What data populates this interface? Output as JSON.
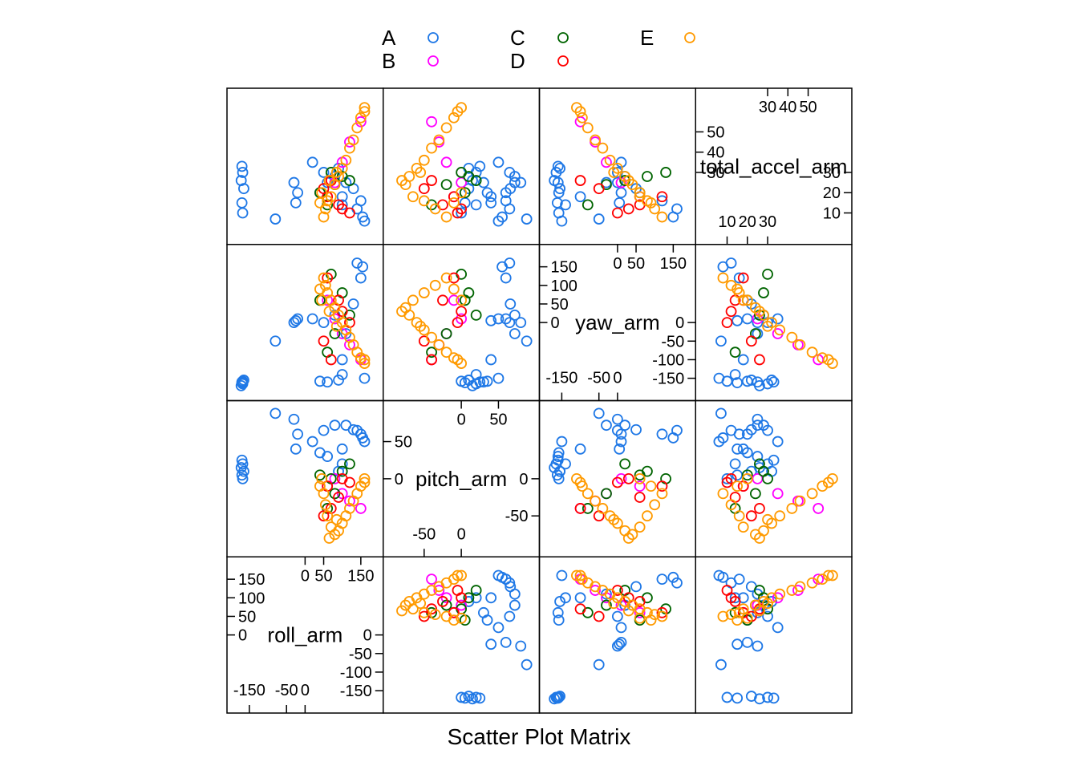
{
  "chart_data": {
    "type": "scatter",
    "subtype": "scatter-plot-matrix",
    "title": "",
    "xlabel": "Scatter Plot Matrix",
    "variables": [
      "roll_arm",
      "pitch_arm",
      "yaw_arm",
      "total_accel_arm"
    ],
    "variable_labels": [
      "roll_arm",
      "pitch_arm",
      "yaw_arm",
      "total_accel_arm"
    ],
    "ranges": {
      "roll_arm": [
        -180,
        180
      ],
      "pitch_arm": [
        -90,
        90
      ],
      "yaw_arm": [
        -180,
        180
      ],
      "total_accel_arm": [
        0,
        66
      ]
    },
    "legend": {
      "position": "top",
      "columns": 3,
      "entries": [
        {
          "name": "A",
          "color": "#1f78e6"
        },
        {
          "name": "B",
          "color": "#ff00ff"
        },
        {
          "name": "C",
          "color": "#006400"
        },
        {
          "name": "D",
          "color": "#ff0000"
        },
        {
          "name": "E",
          "color": "#ff9a00"
        }
      ]
    },
    "diag_ticks": {
      "roll_arm": {
        "left": [
          {
            "v": 150,
            "t": "150"
          },
          {
            "v": 100,
            "t": "100"
          },
          {
            "v": 50,
            "t": "50"
          },
          {
            "v": 0,
            "t": "0"
          }
        ],
        "top": [
          {
            "v": 0,
            "t": "0"
          },
          {
            "v": 50,
            "t": "50"
          },
          {
            "v": 150,
            "t": "150"
          }
        ],
        "bottom": [
          {
            "v": -150,
            "t": "-150"
          },
          {
            "v": -50,
            "t": "-50"
          },
          {
            "v": 0,
            "t": "0"
          }
        ],
        "right": [
          {
            "v": 0,
            "t": "0"
          },
          {
            "v": -50,
            "t": "-50"
          },
          {
            "v": -100,
            "t": "-100"
          },
          {
            "v": -150,
            "t": "-150"
          }
        ]
      },
      "pitch_arm": {
        "left": [
          {
            "v": 50,
            "t": "50"
          },
          {
            "v": 0,
            "t": "0"
          }
        ],
        "top": [
          {
            "v": 0,
            "t": "0"
          },
          {
            "v": 50,
            "t": "50"
          }
        ],
        "bottom": [
          {
            "v": -50,
            "t": "-50"
          },
          {
            "v": 0,
            "t": "0"
          }
        ],
        "right": [
          {
            "v": 0,
            "t": "0"
          },
          {
            "v": -50,
            "t": "-50"
          }
        ]
      },
      "yaw_arm": {
        "left": [
          {
            "v": 150,
            "t": "150"
          },
          {
            "v": 100,
            "t": "100"
          },
          {
            "v": 50,
            "t": "50"
          },
          {
            "v": 0,
            "t": "0"
          }
        ],
        "top": [
          {
            "v": 0,
            "t": "0"
          },
          {
            "v": 50,
            "t": "50"
          },
          {
            "v": 150,
            "t": "150"
          }
        ],
        "bottom": [
          {
            "v": -150,
            "t": "-150"
          },
          {
            "v": -50,
            "t": "-50"
          },
          {
            "v": 0,
            "t": "0"
          }
        ],
        "right": [
          {
            "v": 0,
            "t": "0"
          },
          {
            "v": -50,
            "t": "-50"
          },
          {
            "v": -100,
            "t": "-100"
          },
          {
            "v": -150,
            "t": "-150"
          }
        ]
      },
      "total_accel_arm": {
        "left": [
          {
            "v": 50,
            "t": "50"
          },
          {
            "v": 40,
            "t": "40"
          },
          {
            "v": 30,
            "t": "30"
          }
        ],
        "top": [
          {
            "v": 30,
            "t": "30"
          },
          {
            "v": 40,
            "t": "40"
          },
          {
            "v": 50,
            "t": "50"
          }
        ],
        "bottom": [
          {
            "v": 10,
            "t": "10"
          },
          {
            "v": 20,
            "t": "20"
          },
          {
            "v": 30,
            "t": "30"
          }
        ],
        "right": [
          {
            "v": 30,
            "t": "30"
          },
          {
            "v": 20,
            "t": "20"
          },
          {
            "v": 10,
            "t": "10"
          }
        ]
      }
    },
    "series": [
      {
        "name": "A",
        "points": [
          {
            "roll_arm": -170,
            "pitch_arm": 25,
            "yaw_arm": -160,
            "total_accel_arm": 33
          },
          {
            "roll_arm": -168,
            "pitch_arm": 20,
            "yaw_arm": -165,
            "total_accel_arm": 30
          },
          {
            "roll_arm": -172,
            "pitch_arm": 15,
            "yaw_arm": -170,
            "total_accel_arm": 26
          },
          {
            "roll_arm": -165,
            "pitch_arm": 10,
            "yaw_arm": -155,
            "total_accel_arm": 22
          },
          {
            "roll_arm": -170,
            "pitch_arm": 5,
            "yaw_arm": -162,
            "total_accel_arm": 15
          },
          {
            "roll_arm": -168,
            "pitch_arm": 0,
            "yaw_arm": -158,
            "total_accel_arm": 10
          },
          {
            "roll_arm": -80,
            "pitch_arm": 88,
            "yaw_arm": -50,
            "total_accel_arm": 7
          },
          {
            "roll_arm": -30,
            "pitch_arm": 80,
            "yaw_arm": 0,
            "total_accel_arm": 25
          },
          {
            "roll_arm": -20,
            "pitch_arm": 60,
            "yaw_arm": 10,
            "total_accel_arm": 20
          },
          {
            "roll_arm": -25,
            "pitch_arm": 40,
            "yaw_arm": 5,
            "total_accel_arm": 15
          },
          {
            "roll_arm": 20,
            "pitch_arm": 50,
            "yaw_arm": 10,
            "total_accel_arm": 35
          },
          {
            "roll_arm": 50,
            "pitch_arm": 65,
            "yaw_arm": 0,
            "total_accel_arm": 30
          },
          {
            "roll_arm": 80,
            "pitch_arm": 72,
            "yaw_arm": 20,
            "total_accel_arm": 28
          },
          {
            "roll_arm": 110,
            "pitch_arm": 72,
            "yaw_arm": -30,
            "total_accel_arm": 25
          },
          {
            "roll_arm": 140,
            "pitch_arm": 65,
            "yaw_arm": 160,
            "total_accel_arm": 12
          },
          {
            "roll_arm": 155,
            "pitch_arm": 55,
            "yaw_arm": 150,
            "total_accel_arm": 8
          },
          {
            "roll_arm": 160,
            "pitch_arm": 50,
            "yaw_arm": -150,
            "total_accel_arm": 6
          },
          {
            "roll_arm": 150,
            "pitch_arm": 60,
            "yaw_arm": 120,
            "total_accel_arm": 16
          },
          {
            "roll_arm": 130,
            "pitch_arm": 66,
            "yaw_arm": 50,
            "total_accel_arm": 22
          },
          {
            "roll_arm": 100,
            "pitch_arm": 40,
            "yaw_arm": -100,
            "total_accel_arm": 18
          },
          {
            "roll_arm": 100,
            "pitch_arm": 20,
            "yaw_arm": -140,
            "total_accel_arm": 14
          },
          {
            "roll_arm": 90,
            "pitch_arm": 10,
            "yaw_arm": -155,
            "total_accel_arm": 32
          },
          {
            "roll_arm": 60,
            "pitch_arm": 30,
            "yaw_arm": -160,
            "total_accel_arm": 25
          },
          {
            "roll_arm": 40,
            "pitch_arm": 35,
            "yaw_arm": -158,
            "total_accel_arm": 20
          }
        ]
      },
      {
        "name": "B",
        "points": [
          {
            "roll_arm": 150,
            "pitch_arm": -40,
            "yaw_arm": -100,
            "total_accel_arm": 55
          },
          {
            "roll_arm": 120,
            "pitch_arm": -30,
            "yaw_arm": -60,
            "total_accel_arm": 45
          },
          {
            "roll_arm": 100,
            "pitch_arm": -20,
            "yaw_arm": -30,
            "total_accel_arm": 35
          },
          {
            "roll_arm": 80,
            "pitch_arm": 0,
            "yaw_arm": 10,
            "total_accel_arm": 25
          },
          {
            "roll_arm": 60,
            "pitch_arm": -10,
            "yaw_arm": 60,
            "total_accel_arm": 18
          }
        ]
      },
      {
        "name": "C",
        "points": [
          {
            "roll_arm": 70,
            "pitch_arm": 0,
            "yaw_arm": 130,
            "total_accel_arm": 30
          },
          {
            "roll_arm": 100,
            "pitch_arm": 10,
            "yaw_arm": 80,
            "total_accel_arm": 28
          },
          {
            "roll_arm": 120,
            "pitch_arm": 20,
            "yaw_arm": 20,
            "total_accel_arm": 26
          },
          {
            "roll_arm": 80,
            "pitch_arm": -20,
            "yaw_arm": -30,
            "total_accel_arm": 24
          },
          {
            "roll_arm": 60,
            "pitch_arm": -40,
            "yaw_arm": -80,
            "total_accel_arm": 14
          },
          {
            "roll_arm": 40,
            "pitch_arm": 5,
            "yaw_arm": 60,
            "total_accel_arm": 20
          }
        ]
      },
      {
        "name": "D",
        "points": [
          {
            "roll_arm": 60,
            "pitch_arm": -10,
            "yaw_arm": 120,
            "total_accel_arm": 18
          },
          {
            "roll_arm": 90,
            "pitch_arm": -25,
            "yaw_arm": 60,
            "total_accel_arm": 14
          },
          {
            "roll_arm": 120,
            "pitch_arm": -5,
            "yaw_arm": 0,
            "total_accel_arm": 10
          },
          {
            "roll_arm": 50,
            "pitch_arm": -50,
            "yaw_arm": -50,
            "total_accel_arm": 22
          },
          {
            "roll_arm": 70,
            "pitch_arm": -40,
            "yaw_arm": -100,
            "total_accel_arm": 26
          },
          {
            "roll_arm": 100,
            "pitch_arm": 0,
            "yaw_arm": 30,
            "total_accel_arm": 12
          }
        ]
      },
      {
        "name": "E",
        "points": [
          {
            "roll_arm": 160,
            "pitch_arm": 0,
            "yaw_arm": -110,
            "total_accel_arm": 62
          },
          {
            "roll_arm": 140,
            "pitch_arm": -20,
            "yaw_arm": -80,
            "total_accel_arm": 52
          },
          {
            "roll_arm": 120,
            "pitch_arm": -40,
            "yaw_arm": -40,
            "total_accel_arm": 42
          },
          {
            "roll_arm": 100,
            "pitch_arm": -60,
            "yaw_arm": 0,
            "total_accel_arm": 32
          },
          {
            "roll_arm": 80,
            "pitch_arm": -75,
            "yaw_arm": 40,
            "total_accel_arm": 24
          },
          {
            "roll_arm": 60,
            "pitch_arm": -50,
            "yaw_arm": 80,
            "total_accel_arm": 16
          },
          {
            "roll_arm": 50,
            "pitch_arm": -20,
            "yaw_arm": 120,
            "total_accel_arm": 8
          },
          {
            "roll_arm": 45,
            "pitch_arm": 0,
            "yaw_arm": 60,
            "total_accel_arm": 20
          },
          {
            "roll_arm": 130,
            "pitch_arm": -30,
            "yaw_arm": -60,
            "total_accel_arm": 46
          },
          {
            "roll_arm": 150,
            "pitch_arm": -10,
            "yaw_arm": -95,
            "total_accel_arm": 57
          },
          {
            "roll_arm": 110,
            "pitch_arm": -50,
            "yaw_arm": -20,
            "total_accel_arm": 36
          },
          {
            "roll_arm": 90,
            "pitch_arm": -70,
            "yaw_arm": 20,
            "total_accel_arm": 28
          },
          {
            "roll_arm": 70,
            "pitch_arm": -65,
            "yaw_arm": 60,
            "total_accel_arm": 18
          },
          {
            "roll_arm": 55,
            "pitch_arm": -35,
            "yaw_arm": 100,
            "total_accel_arm": 12
          },
          {
            "roll_arm": 65,
            "pitch_arm": -80,
            "yaw_arm": 30,
            "total_accel_arm": 26
          },
          {
            "roll_arm": 85,
            "pitch_arm": -55,
            "yaw_arm": -10,
            "total_accel_arm": 30
          },
          {
            "roll_arm": 160,
            "pitch_arm": -5,
            "yaw_arm": -100,
            "total_accel_arm": 60
          },
          {
            "roll_arm": 40,
            "pitch_arm": -10,
            "yaw_arm": 90,
            "total_accel_arm": 15
          }
        ]
      }
    ]
  }
}
